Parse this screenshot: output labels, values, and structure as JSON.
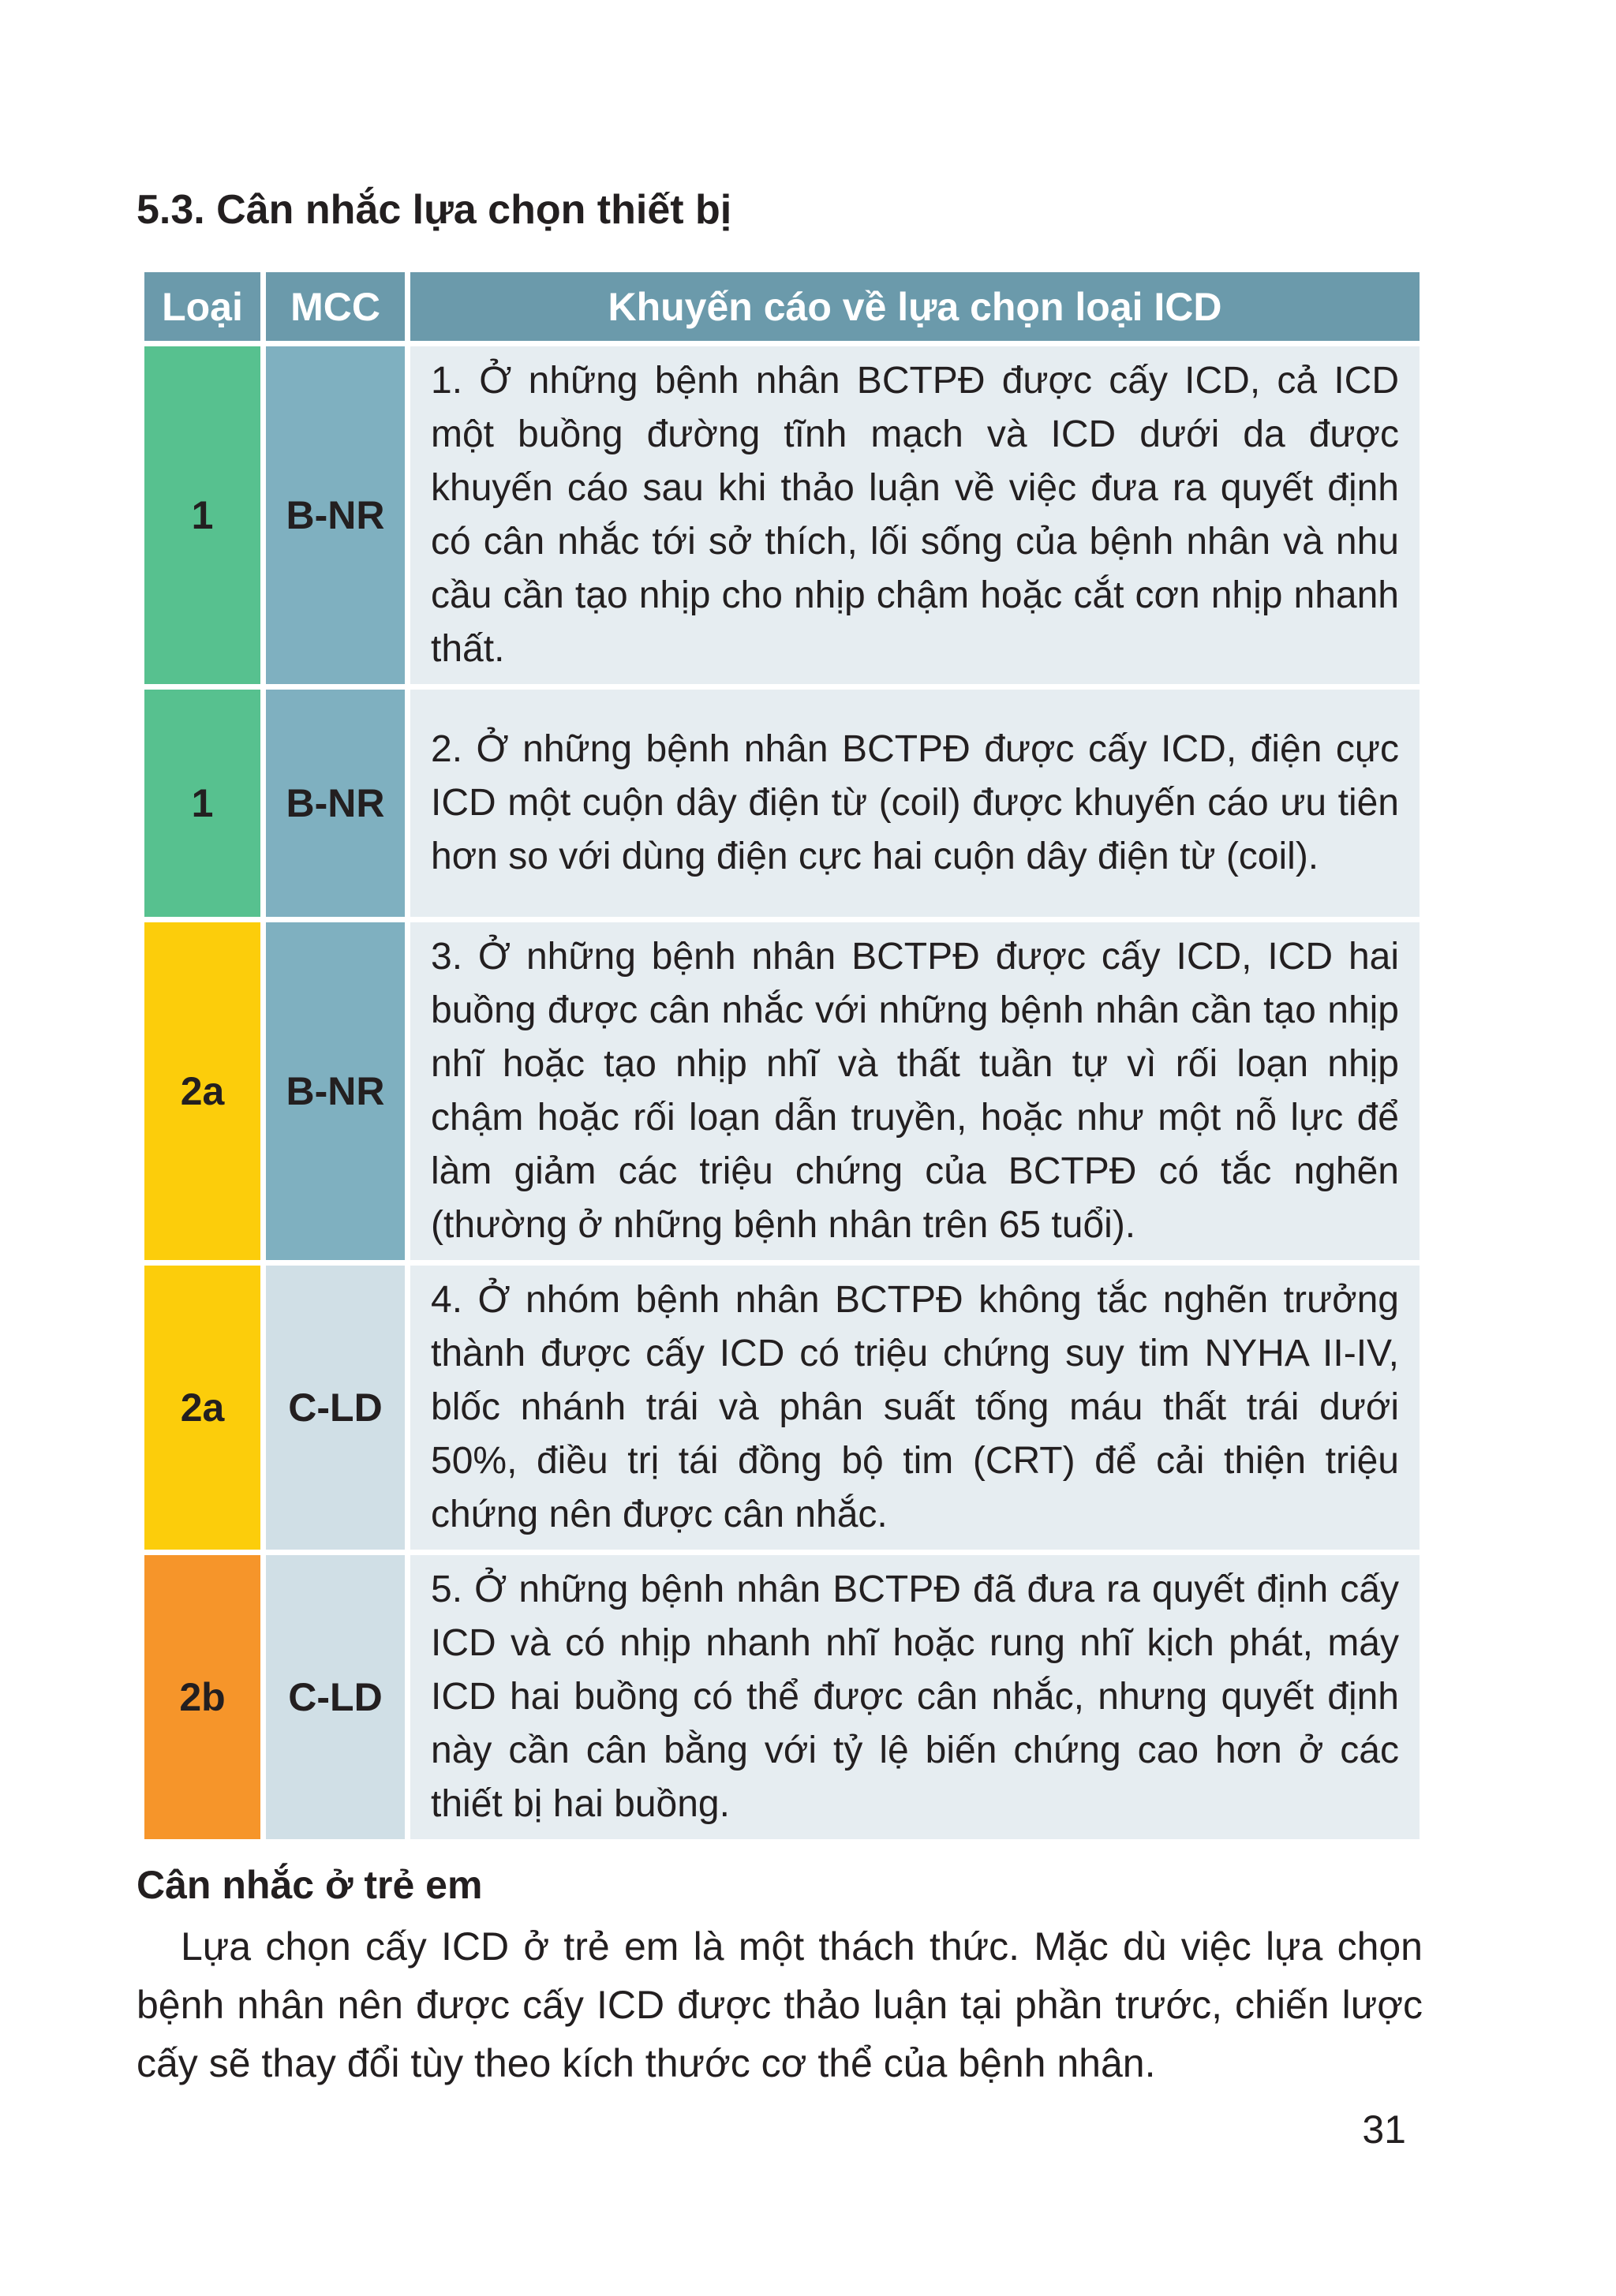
{
  "section_title": "5.3. Cân nhắc lựa chọn thiết bị",
  "table": {
    "headers": [
      "Loại",
      "MCC",
      "Khuyến cáo về lựa chọn loại ICD"
    ],
    "rows": [
      {
        "loai": "1",
        "mcc": "B-NR",
        "loai_color": "#57c18f",
        "mcc_color": "#7fb0c0",
        "text": "1. Ở những bệnh nhân BCTPĐ được cấy ICD, cả ICD một buồng đường tĩnh mạch và ICD dưới da được khuyến cáo sau khi thảo luận về việc đưa ra quyết định có cân nhắc tới sở thích, lối sống của bệnh nhân và nhu cầu cần tạo nhịp cho nhịp chậm hoặc cắt cơn nhịp nhanh thất."
      },
      {
        "loai": "1",
        "mcc": "B-NR",
        "loai_color": "#57c18f",
        "mcc_color": "#7fb0c0",
        "text": "2. Ở những bệnh nhân BCTPĐ được cấy ICD, điện cực ICD một cuộn dây điện từ (coil) được khuyến cáo ưu tiên hơn so với dùng điện cực hai cuộn dây điện từ (coil)."
      },
      {
        "loai": "2a",
        "mcc": "B-NR",
        "loai_color": "#fccd0b",
        "mcc_color": "#7fb0c0",
        "text": "3. Ở những bệnh nhân BCTPĐ được cấy ICD, ICD hai buồng được cân nhắc với những bệnh nhân cần tạo nhịp nhĩ hoặc tạo nhịp nhĩ và thất tuần tự vì rối loạn nhịp chậm hoặc rối loạn dẫn truyền, hoặc như một nỗ lực để làm giảm các triệu chứng của BCTPĐ có tắc nghẽn (thường ở những bệnh nhân trên 65 tuổi)."
      },
      {
        "loai": "2a",
        "mcc": "C-LD",
        "loai_color": "#fccd0b",
        "mcc_color": "#d0dfe6",
        "text": "4. Ở nhóm bệnh nhân BCTPĐ không tắc nghẽn trưởng thành được cấy ICD có triệu chứng suy tim NYHA II-IV, blốc nhánh trái và phân suất tống máu thất trái dưới 50%, điều trị tái đồng bộ tim (CRT) để cải thiện triệu chứng nên được cân nhắc."
      },
      {
        "loai": "2b",
        "mcc": "C-LD",
        "loai_color": "#f6952a",
        "mcc_color": "#d0dfe6",
        "text": "5. Ở những bệnh nhân BCTPĐ đã đưa ra quyết định cấy ICD và có nhịp nhanh nhĩ hoặc rung nhĩ kịch phát, máy ICD hai buồng có thể được cân nhắc, nhưng quyết định này cần cân bằng với tỷ lệ biến chứng cao hơn ở các thiết bị hai buồng."
      }
    ]
  },
  "subheading": "Cân nhắc ở trẻ em",
  "paragraph": "Lựa chọn cấy ICD ở trẻ em là một thách thức. Mặc dù việc lựa chọn bệnh nhân nên được cấy ICD được thảo luận tại phần trước, chiến lược cấy sẽ thay đổi tùy theo kích thước cơ thể của bệnh nhân.",
  "page_number": "31"
}
